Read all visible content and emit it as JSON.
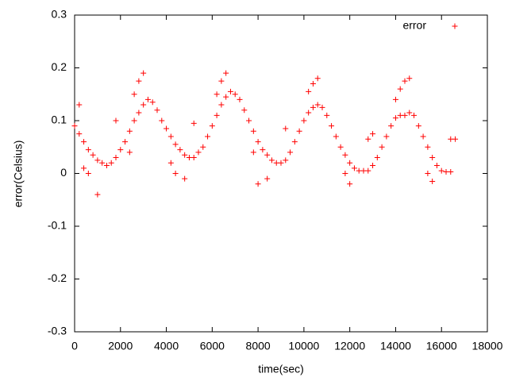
{
  "chart_data": {
    "type": "scatter",
    "xlabel": "time(sec)",
    "ylabel": "error(Celsius)",
    "xlim": [
      0,
      18000
    ],
    "ylim": [
      -0.3,
      0.3
    ],
    "xticks": [
      0,
      2000,
      4000,
      6000,
      8000,
      10000,
      12000,
      14000,
      16000,
      18000
    ],
    "yticks": [
      -0.3,
      -0.2,
      -0.1,
      0,
      0.1,
      0.2,
      0.3
    ],
    "legend": "top-right",
    "series": [
      {
        "name": "error",
        "color": "#ff0000",
        "x": [
          0,
          200,
          400,
          600,
          800,
          1000,
          1200,
          1400,
          1600,
          1800,
          2000,
          2200,
          2400,
          2600,
          2800,
          3000,
          3200,
          3400,
          3600,
          3800,
          4000,
          4200,
          4400,
          4600,
          4800,
          5000,
          5200,
          5400,
          5600,
          5800,
          6000,
          6200,
          6400,
          6600,
          6800,
          7000,
          7200,
          7400,
          7600,
          7800,
          8000,
          8200,
          8400,
          8600,
          8800,
          9000,
          9200,
          9400,
          9600,
          9800,
          10000,
          10200,
          10400,
          10600,
          10800,
          11000,
          11200,
          11400,
          11600,
          11800,
          12000,
          12200,
          12400,
          12600,
          12800,
          13000,
          13200,
          13400,
          13600,
          13800,
          14000,
          14200,
          14400,
          14600,
          14800,
          15000,
          15200,
          15400,
          15600,
          15800,
          16000,
          16200,
          16400,
          16600,
          2600,
          2800,
          3000,
          6200,
          6400,
          6600,
          10200,
          10400,
          10600,
          14000,
          14200,
          14400,
          14600,
          400,
          600,
          1000,
          4200,
          4400,
          4800,
          7800,
          8000,
          8400,
          11800,
          12000,
          15400,
          15600,
          200,
          1800,
          2400,
          5200,
          9200,
          12800,
          13000,
          16400
        ],
        "values": [
          0.09,
          0.075,
          0.06,
          0.045,
          0.035,
          0.025,
          0.02,
          0.015,
          0.02,
          0.03,
          0.045,
          0.06,
          0.08,
          0.1,
          0.115,
          0.13,
          0.14,
          0.135,
          0.12,
          0.1,
          0.085,
          0.07,
          0.055,
          0.045,
          0.035,
          0.03,
          0.03,
          0.04,
          0.05,
          0.07,
          0.09,
          0.11,
          0.13,
          0.145,
          0.155,
          0.15,
          0.14,
          0.12,
          0.1,
          0.08,
          0.06,
          0.045,
          0.035,
          0.025,
          0.02,
          0.02,
          0.025,
          0.04,
          0.06,
          0.08,
          0.1,
          0.115,
          0.125,
          0.13,
          0.125,
          0.11,
          0.09,
          0.07,
          0.05,
          0.035,
          0.02,
          0.01,
          0.005,
          0.005,
          0.005,
          0.015,
          0.03,
          0.05,
          0.07,
          0.09,
          0.105,
          0.11,
          0.11,
          0.115,
          0.11,
          0.09,
          0.07,
          0.05,
          0.03,
          0.015,
          0.005,
          0.003,
          0.003,
          0.065,
          0.15,
          0.175,
          0.19,
          0.15,
          0.175,
          0.19,
          0.155,
          0.17,
          0.18,
          0.14,
          0.16,
          0.175,
          0.18,
          0.01,
          0,
          -0.04,
          0.02,
          0,
          -0.01,
          0.04,
          -0.02,
          -0.01,
          0,
          -0.02,
          0,
          -0.015,
          0.13,
          0.1,
          0.04,
          0.095,
          0.085,
          0.065,
          0.075,
          0.065
        ]
      }
    ]
  }
}
